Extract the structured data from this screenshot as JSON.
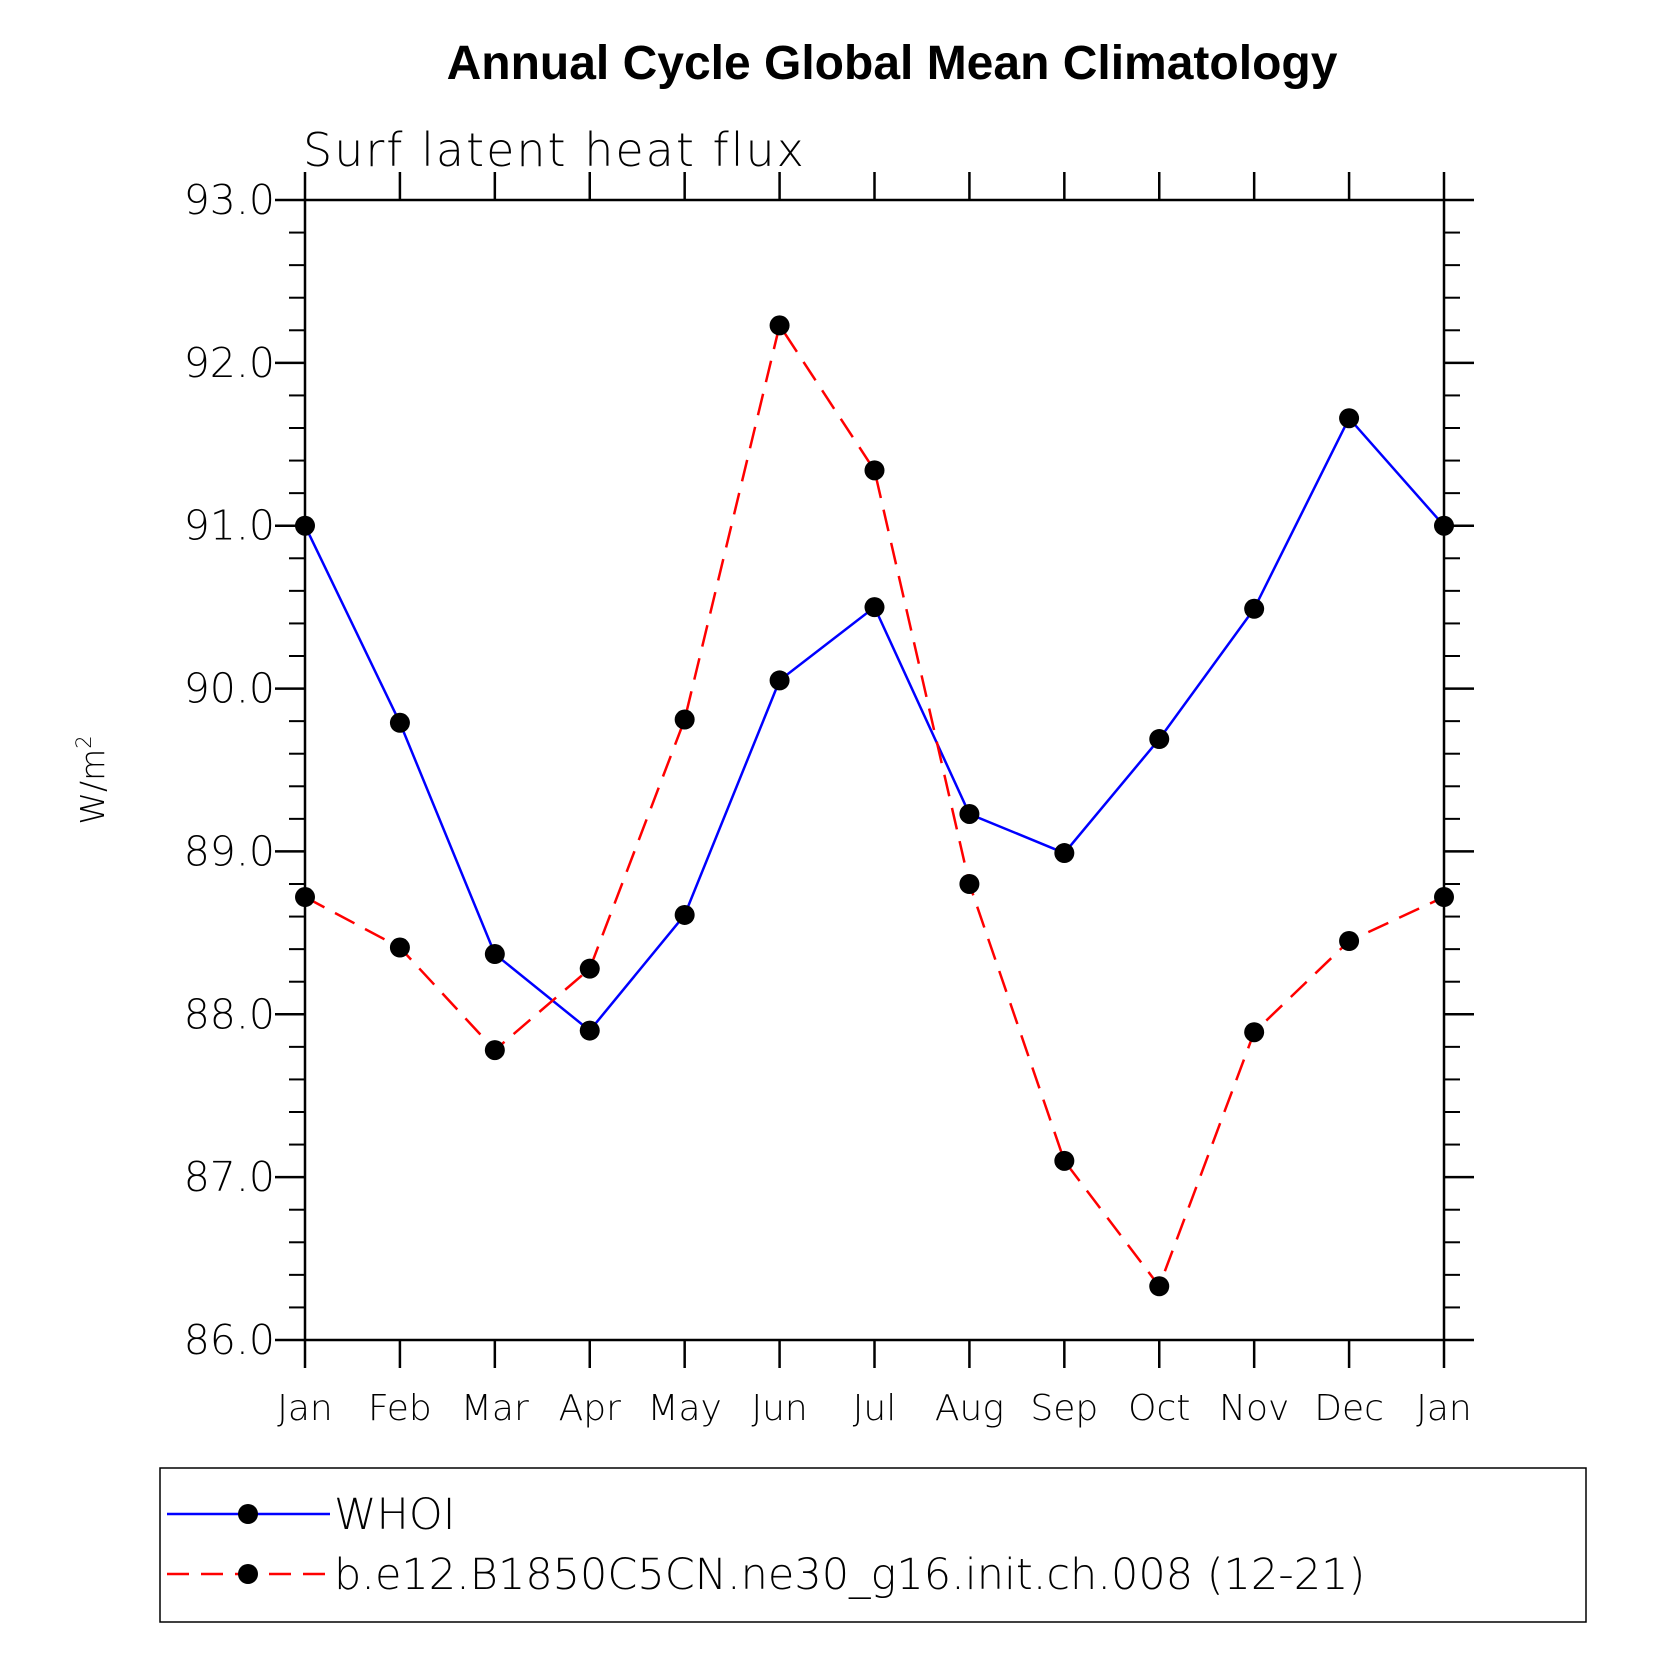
{
  "chart_data": {
    "type": "line",
    "title": "Annual Cycle Global Mean Climatology",
    "subtitle": "Surf latent heat flux",
    "ylabel": "W/m",
    "ylabel_sup": "2",
    "xlabel": "",
    "categories": [
      "Jan",
      "Feb",
      "Mar",
      "Apr",
      "May",
      "Jun",
      "Jul",
      "Aug",
      "Sep",
      "Oct",
      "Nov",
      "Dec",
      "Jan"
    ],
    "ylim": [
      86.0,
      93.0
    ],
    "yticks": [
      "86.0",
      "87.0",
      "88.0",
      "89.0",
      "90.0",
      "91.0",
      "92.0",
      "93.0"
    ],
    "series": [
      {
        "name": "WHOI",
        "color": "#0000ff",
        "dash": "solid",
        "values": [
          91.0,
          89.79,
          88.37,
          87.9,
          88.61,
          90.05,
          90.5,
          89.23,
          88.99,
          89.69,
          90.49,
          91.66,
          91.0
        ]
      },
      {
        "name": "b.e12.B1850C5CN.ne30_g16.init.ch.008 (12-21)",
        "color": "#ff0000",
        "dash": "dashed",
        "values": [
          88.72,
          88.41,
          87.78,
          88.28,
          89.81,
          92.23,
          91.34,
          88.8,
          87.1,
          86.33,
          87.89,
          88.45,
          88.72
        ]
      }
    ],
    "legend": "bottom"
  }
}
